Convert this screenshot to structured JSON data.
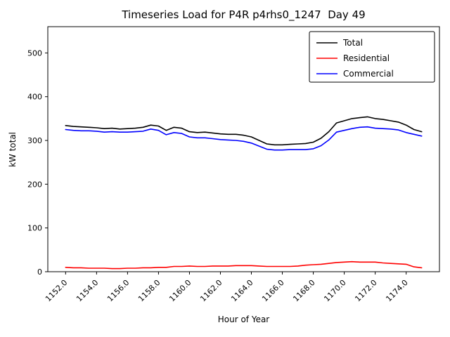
{
  "chart_data": {
    "type": "line",
    "title": "Timeseries Load for P4R p4rhs0_1247  Day 49",
    "xlabel": "Hour of Year",
    "ylabel": "kW total",
    "xlim": [
      1150.85,
      1176.15
    ],
    "ylim": [
      0,
      560
    ],
    "xticks": [
      1152,
      1154,
      1156,
      1158,
      1160,
      1162,
      1164,
      1166,
      1168,
      1170,
      1172,
      1174
    ],
    "xtick_labels": [
      "1152.0",
      "1154.0",
      "1156.0",
      "1158.0",
      "1160.0",
      "1162.0",
      "1164.0",
      "1166.0",
      "1168.0",
      "1170.0",
      "1172.0",
      "1174.0"
    ],
    "yticks": [
      0,
      100,
      200,
      300,
      400,
      500
    ],
    "ytick_labels": [
      "0",
      "100",
      "200",
      "300",
      "400",
      "500"
    ],
    "grid": false,
    "legend_position": "upper right",
    "x": [
      1152.0,
      1152.5,
      1153.0,
      1153.5,
      1154.0,
      1154.5,
      1155.0,
      1155.5,
      1156.0,
      1156.5,
      1157.0,
      1157.5,
      1158.0,
      1158.5,
      1159.0,
      1159.5,
      1160.0,
      1160.5,
      1161.0,
      1161.5,
      1162.0,
      1162.5,
      1163.0,
      1163.5,
      1164.0,
      1164.5,
      1165.0,
      1165.5,
      1166.0,
      1166.5,
      1167.0,
      1167.5,
      1168.0,
      1168.5,
      1169.0,
      1169.5,
      1170.0,
      1170.5,
      1171.0,
      1171.5,
      1172.0,
      1172.5,
      1173.0,
      1173.5,
      1174.0,
      1174.5,
      1175.0
    ],
    "series": [
      {
        "name": "Total",
        "color": "#000000",
        "values": [
          334,
          332,
          331,
          330,
          329,
          327,
          328,
          326,
          327,
          328,
          330,
          335,
          333,
          323,
          330,
          328,
          320,
          318,
          319,
          317,
          315,
          314,
          314,
          312,
          308,
          300,
          292,
          290,
          290,
          291,
          292,
          293,
          296,
          305,
          320,
          340,
          345,
          350,
          352,
          354,
          350,
          348,
          345,
          342,
          335,
          325,
          320
        ]
      },
      {
        "name": "Residential",
        "color": "#ff0000",
        "values": [
          10,
          9,
          9,
          8,
          8,
          8,
          7,
          7,
          8,
          8,
          9,
          9,
          10,
          10,
          12,
          12,
          13,
          12,
          12,
          13,
          13,
          13,
          14,
          14,
          14,
          13,
          12,
          12,
          12,
          12,
          13,
          15,
          16,
          17,
          19,
          21,
          22,
          23,
          22,
          22,
          22,
          20,
          19,
          18,
          17,
          11,
          9
        ]
      },
      {
        "name": "Commercial",
        "color": "#0000ff",
        "values": [
          325,
          323,
          322,
          322,
          321,
          319,
          320,
          319,
          319,
          320,
          321,
          326,
          323,
          313,
          318,
          316,
          308,
          306,
          306,
          304,
          302,
          301,
          300,
          298,
          294,
          287,
          280,
          278,
          278,
          279,
          279,
          279,
          281,
          288,
          301,
          319,
          323,
          327,
          330,
          331,
          328,
          327,
          326,
          324,
          318,
          314,
          310
        ]
      }
    ]
  }
}
